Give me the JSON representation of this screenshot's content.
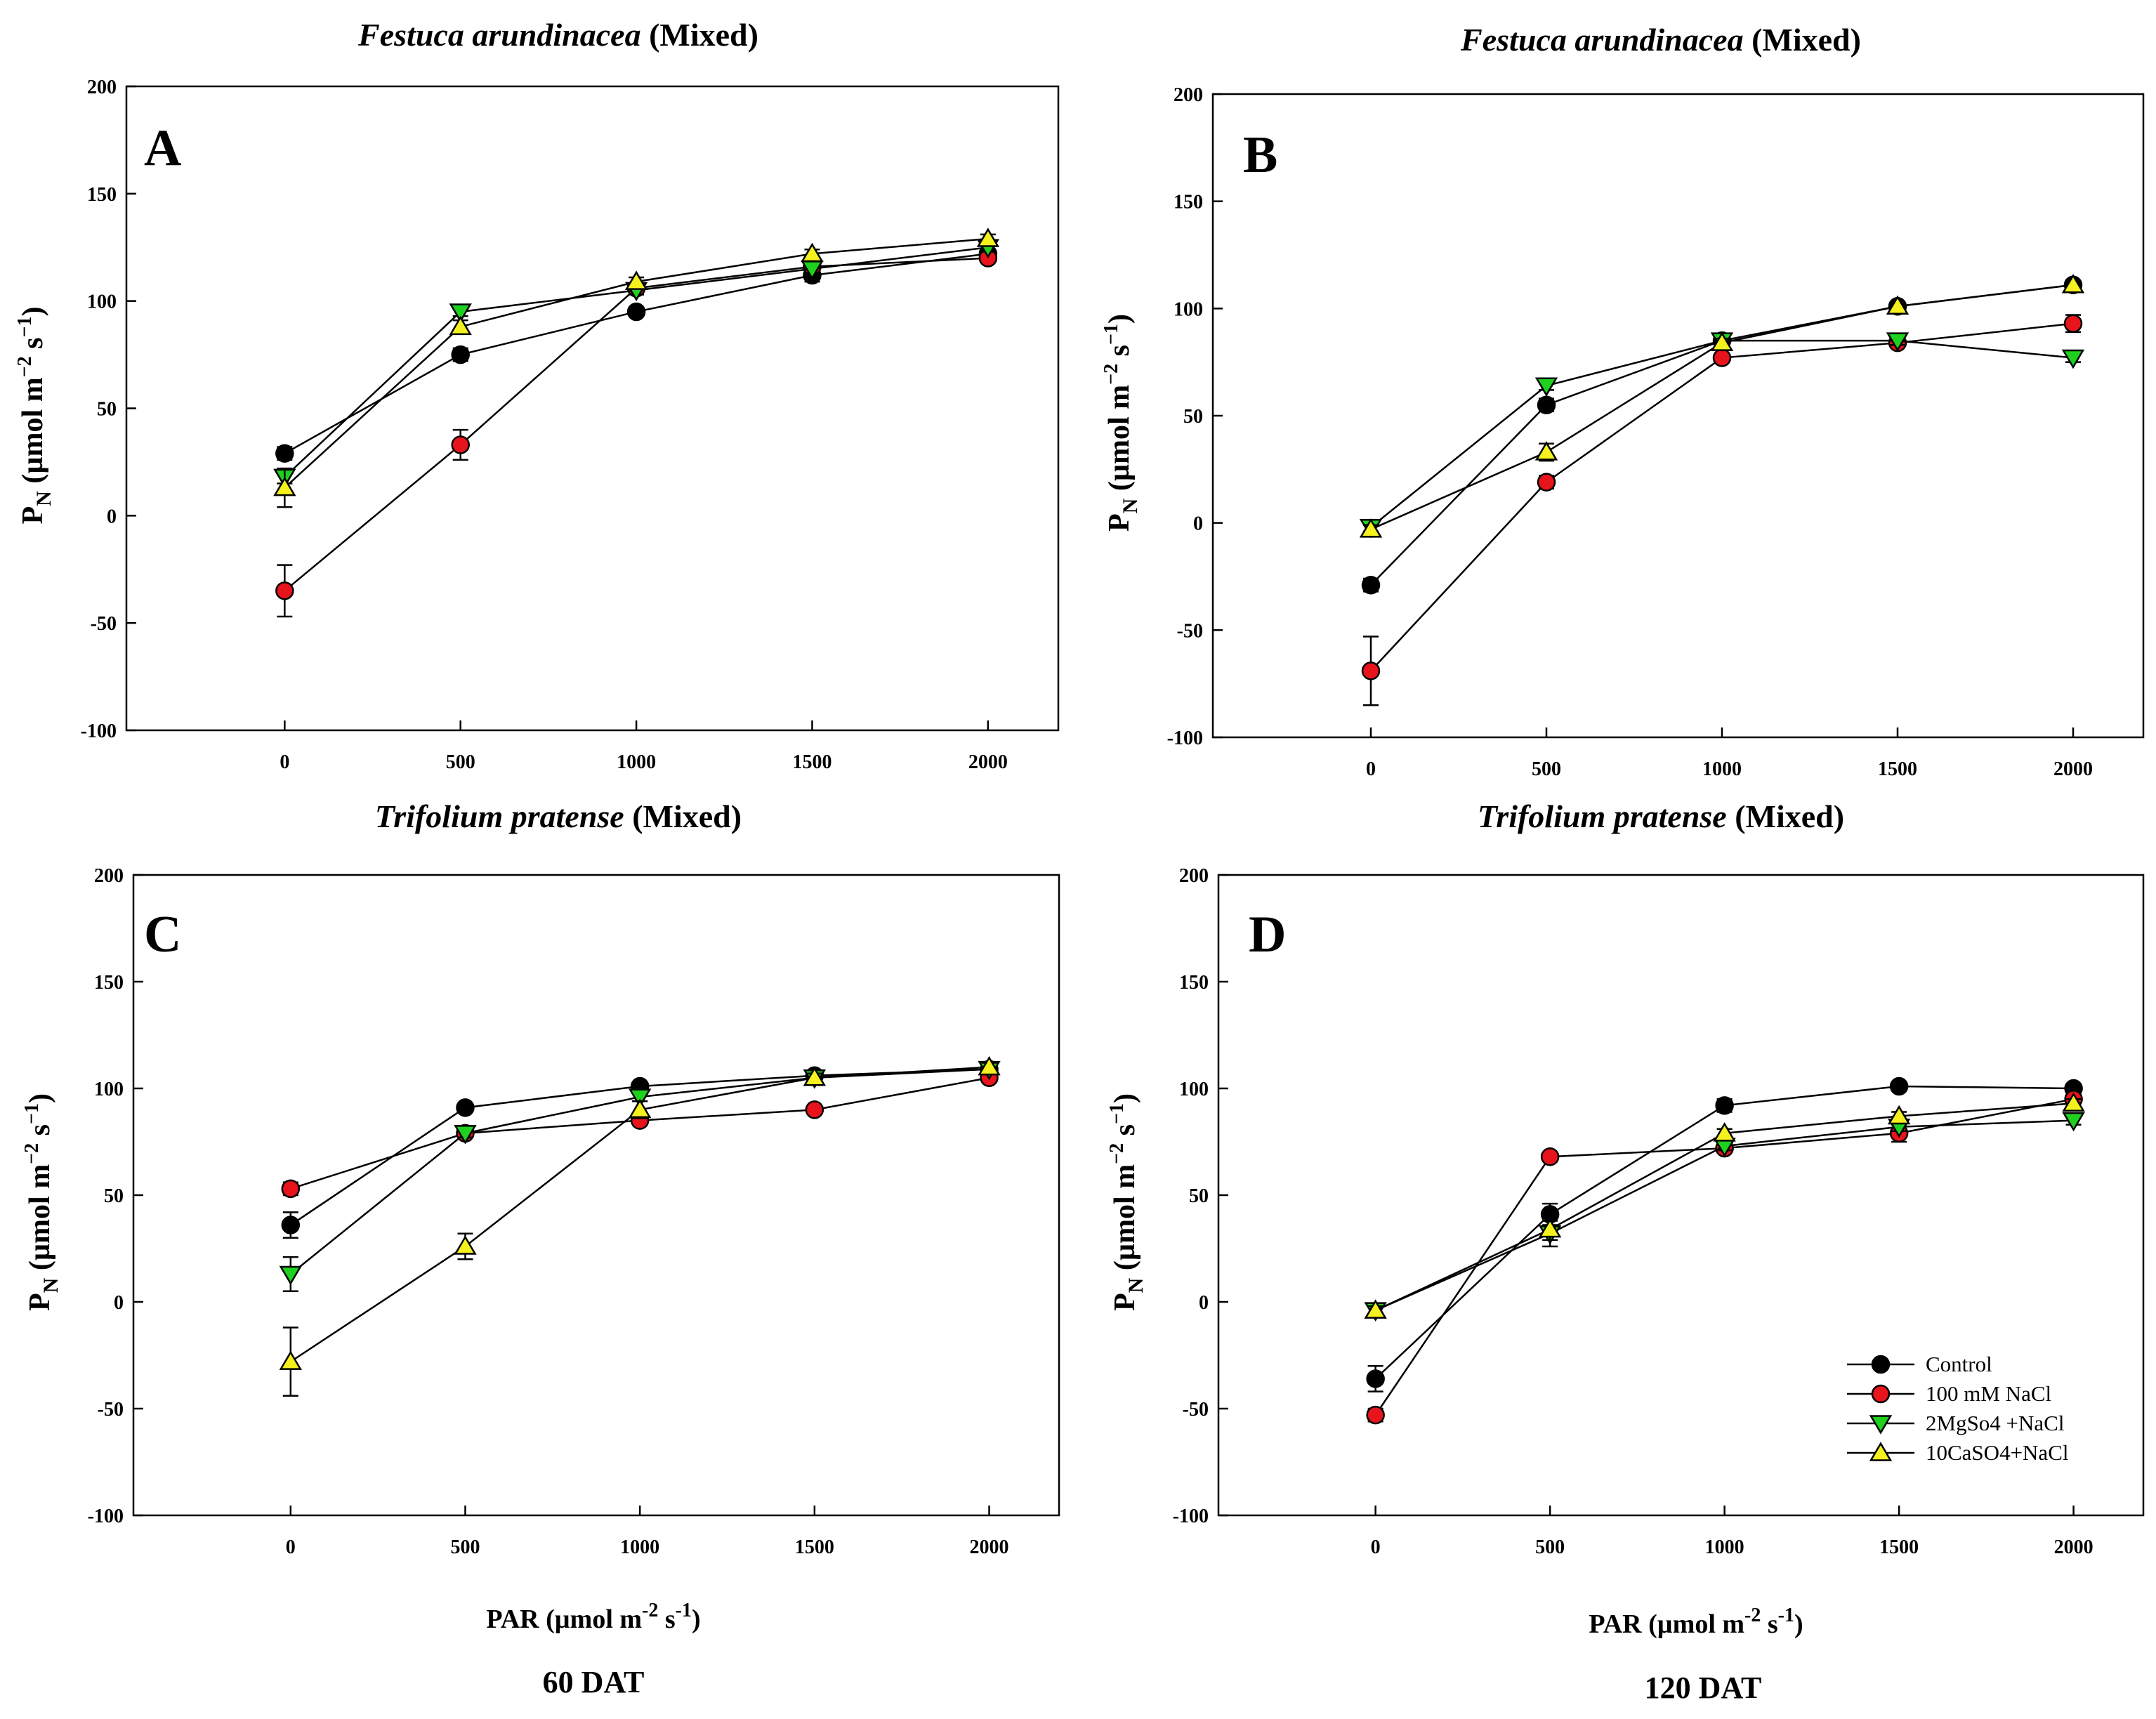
{
  "figure": {
    "top_titles": [
      {
        "italic": "Festuca arundinacea",
        "rest": " (Mixed)"
      },
      {
        "italic": "Festuca arundinacea",
        "rest": " (Mixed)"
      }
    ],
    "mid_titles": [
      {
        "italic": "Trifolium pratense",
        "rest": " (Mixed)"
      },
      {
        "italic": "Trifolium pratense",
        "rest": " (Mixed)"
      }
    ],
    "bottom_labels": [
      "60 DAT",
      "120 DAT"
    ],
    "ylabel": {
      "main": "P",
      "sub": "N",
      "rest": " (µmol m",
      "sup1": "−2",
      "mid": " s",
      "sup2": "−1",
      "end": ")"
    },
    "xlabel": {
      "main": "PAR (µmol m",
      "sup1": "-2",
      "mid": " s",
      "sup2": "-1",
      "end": ")"
    },
    "colors": {
      "Control": "#000000",
      "100 mM NaCl": "#e8141b",
      "2MgSo4 +NaCl": "#1fd11f",
      "10CaSO4+NaCl": "#f5f11e"
    },
    "legend": [
      "Control",
      "100 mM NaCl",
      "2MgSo4 +NaCl",
      "10CaSO4+NaCl"
    ]
  },
  "chart_data": [
    {
      "panel": "A",
      "type": "line",
      "x": [
        0,
        500,
        1000,
        1500,
        2000
      ],
      "xticks": [
        "0",
        "500",
        "1000",
        "1500",
        "2000"
      ],
      "yticks": [
        "-100",
        "-50",
        "0",
        "50",
        "100",
        "150",
        "200"
      ],
      "xlim": [
        -450,
        2200
      ],
      "ylim": [
        -100,
        200
      ],
      "grid": false,
      "legend": "none",
      "series": [
        {
          "name": "Control",
          "marker": "circle",
          "values": [
            29,
            75,
            95,
            112,
            122
          ],
          "err": [
            3,
            3,
            2,
            3,
            2
          ]
        },
        {
          "name": "100 mM NaCl",
          "marker": "circle",
          "values": [
            -35,
            33,
            106,
            116,
            120
          ],
          "err": [
            12,
            7,
            2,
            2,
            2
          ]
        },
        {
          "name": "2MgSo4 +NaCl",
          "marker": "triangle-down",
          "values": [
            18,
            95,
            105,
            115,
            125
          ],
          "err": [
            3,
            2,
            2,
            2,
            2
          ]
        },
        {
          "name": "10CaSO4+NaCl",
          "marker": "triangle-up",
          "values": [
            13,
            88,
            109,
            122,
            129
          ],
          "err": [
            9,
            3,
            2,
            2,
            2
          ]
        }
      ]
    },
    {
      "panel": "B",
      "type": "line",
      "x": [
        0,
        500,
        1000,
        1500,
        2000
      ],
      "xticks": [
        "0",
        "500",
        "1000",
        "1500",
        "2000"
      ],
      "yticks": [
        "-100",
        "-50",
        "0",
        "50",
        "100",
        "150",
        "200"
      ],
      "xlim": [
        -450,
        2200
      ],
      "ylim": [
        -100,
        200
      ],
      "grid": false,
      "legend": "none",
      "series": [
        {
          "name": "Control",
          "marker": "circle",
          "values": [
            -29,
            55,
            85,
            101,
            111
          ],
          "err": [
            3,
            3,
            2,
            2,
            2
          ]
        },
        {
          "name": "100 mM NaCl",
          "marker": "circle",
          "values": [
            -69,
            19,
            77,
            84,
            93
          ],
          "err": [
            16,
            3,
            2,
            2,
            4
          ]
        },
        {
          "name": "2MgSo4 +NaCl",
          "marker": "triangle-down",
          "values": [
            -2,
            64,
            85,
            85,
            77
          ],
          "err": [
            2,
            2,
            2,
            2,
            2
          ]
        },
        {
          "name": "10CaSO4+NaCl",
          "marker": "triangle-up",
          "values": [
            -3,
            33,
            84,
            101,
            111
          ],
          "err": [
            2,
            4,
            2,
            2,
            2
          ]
        }
      ]
    },
    {
      "panel": "C",
      "type": "line",
      "x": [
        0,
        500,
        1000,
        1500,
        2000
      ],
      "xticks": [
        "0",
        "500",
        "1000",
        "1500",
        "2000"
      ],
      "yticks": [
        "-100",
        "-50",
        "0",
        "50",
        "100",
        "150",
        "200"
      ],
      "xlim": [
        -450,
        2200
      ],
      "ylim": [
        -100,
        200
      ],
      "grid": false,
      "legend": "none",
      "series": [
        {
          "name": "Control",
          "marker": "circle",
          "values": [
            36,
            91,
            101,
            106,
            109
          ],
          "err": [
            6,
            2,
            2,
            2,
            2
          ]
        },
        {
          "name": "100 mM NaCl",
          "marker": "circle",
          "values": [
            53,
            79,
            85,
            90,
            105
          ],
          "err": [
            3,
            2,
            2,
            2,
            2
          ]
        },
        {
          "name": "2MgSo4 +NaCl",
          "marker": "triangle-down",
          "values": [
            13,
            79,
            96,
            105,
            109
          ],
          "err": [
            8,
            2,
            2,
            2,
            2
          ]
        },
        {
          "name": "10CaSO4+NaCl",
          "marker": "triangle-up",
          "values": [
            -28,
            26,
            90,
            105,
            110
          ],
          "err": [
            16,
            6,
            4,
            2,
            2
          ]
        }
      ]
    },
    {
      "panel": "D",
      "type": "line",
      "x": [
        0,
        500,
        1000,
        1500,
        2000
      ],
      "xticks": [
        "0",
        "500",
        "1000",
        "1500",
        "2000"
      ],
      "yticks": [
        "-100",
        "-50",
        "0",
        "50",
        "100",
        "150",
        "200"
      ],
      "xlim": [
        -450,
        2200
      ],
      "ylim": [
        -100,
        200
      ],
      "grid": false,
      "legend": "bottom-right",
      "series": [
        {
          "name": "Control",
          "marker": "circle",
          "values": [
            -36,
            41,
            92,
            101,
            100
          ],
          "err": [
            6,
            5,
            3,
            2,
            2
          ]
        },
        {
          "name": "100 mM NaCl",
          "marker": "circle",
          "values": [
            -53,
            68,
            72,
            79,
            95
          ],
          "err": [
            3,
            2,
            2,
            4,
            2
          ]
        },
        {
          "name": "2MgSo4 +NaCl",
          "marker": "triangle-down",
          "values": [
            -4,
            32,
            73,
            82,
            85
          ],
          "err": [
            2,
            6,
            2,
            2,
            2
          ]
        },
        {
          "name": "10CaSO4+NaCl",
          "marker": "triangle-up",
          "values": [
            -4,
            34,
            79,
            87,
            93
          ],
          "err": [
            2,
            5,
            2,
            2,
            2
          ]
        }
      ]
    }
  ]
}
